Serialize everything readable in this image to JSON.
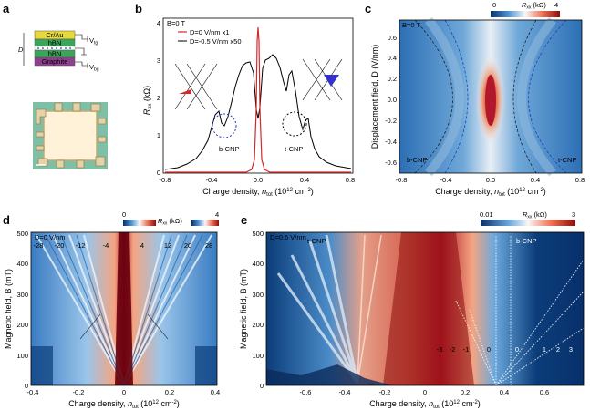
{
  "figure": {
    "panel_a": {
      "letter": "a",
      "stack_labels": [
        "Cr/Au",
        "hBN",
        "hBN",
        "Graphite"
      ],
      "vtg": "V",
      "vtg_sub": "tg",
      "vbg": "V",
      "vbg_sub": "bg",
      "d_label": "D"
    },
    "panel_b": {
      "letter": "b",
      "field": "B=0 T",
      "legend": [
        "D=0 V/nm x1",
        "D=-0.5 V/nm x50"
      ],
      "ylabel": "R",
      "ylabel_sub": "xx",
      "ylabel_unit": " (kΩ)",
      "xlabel": "Charge density, ",
      "xlabel_n": "n",
      "xlabel_sub": "tot",
      "xlabel_unit": " (10",
      "xlabel_exp": "12",
      "xlabel_tail": " cm",
      "xlabel_exp2": "-2",
      "xlabel_close": ")",
      "yticks": [
        "0",
        "1",
        "2",
        "3",
        "4"
      ],
      "xticks": [
        "-0.8",
        "-0.4",
        "0.0",
        "0.4",
        "0.8"
      ],
      "annotations": [
        "b-CNP",
        "t-CNP"
      ]
    },
    "panel_c": {
      "letter": "c",
      "field": "B=0 T",
      "colorbar_min": "0",
      "colorbar_max": "4",
      "colorbar_label": "R",
      "colorbar_sub": "xx",
      "colorbar_unit": " (kΩ)",
      "ylabel": "Displacement field, D (V/nm)",
      "yticks": [
        "0.6",
        "0.4",
        "0.2",
        "0.0",
        "-0.2",
        "-0.4",
        "-0.6"
      ],
      "xticks": [
        "-0.8",
        "-0.4",
        "0.0",
        "0.4",
        "0.8"
      ],
      "annotations": [
        "b-CNP",
        "t-CNP"
      ]
    },
    "panel_d": {
      "letter": "d",
      "field": "D=0 V/nm",
      "colorbar_min": "0",
      "colorbar_max": "4",
      "ylabel": "Magnetic field, B (mT)",
      "yticks": [
        "500",
        "400",
        "300",
        "200",
        "100",
        "0"
      ],
      "xticks": [
        "-0.4",
        "-0.2",
        "0",
        "0.2",
        "0.4"
      ],
      "filling": [
        "-28",
        "-20",
        "-12",
        "-4",
        "4",
        "12",
        "20",
        "28"
      ]
    },
    "panel_e": {
      "letter": "e",
      "field": "D=0.6 V/nm",
      "colorbar_min": "0.01",
      "colorbar_max": "3",
      "ylabel": "Magnetic field, B (mT)",
      "yticks": [
        "500",
        "400",
        "300",
        "200",
        "100",
        "0"
      ],
      "xticks": [
        "-0.6",
        "-0.4",
        "-0.2",
        "0",
        "0.2",
        "0.4",
        "0.6"
      ],
      "annotations": [
        "t-CNP",
        "b-CNP"
      ],
      "filling": [
        "-3",
        "-2",
        "-1",
        "0",
        "0",
        "1",
        "2",
        "3"
      ]
    },
    "colors": {
      "red": "#d62728",
      "blue_dark": "#08306b",
      "blue_mid": "#2171b5",
      "white": "#f7f7f7"
    }
  }
}
